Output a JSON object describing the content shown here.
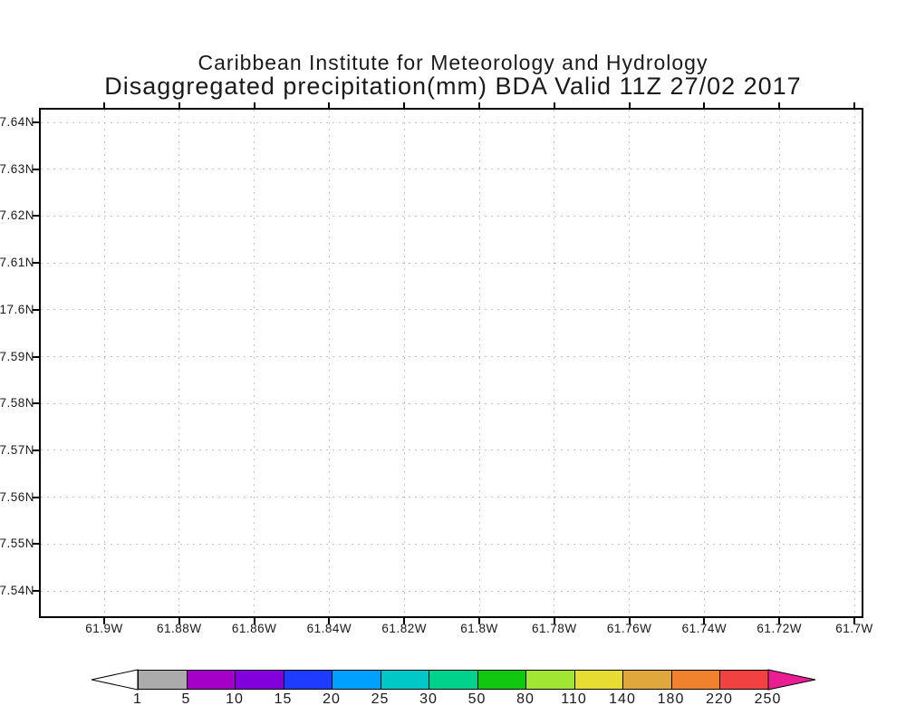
{
  "chart_data": {
    "type": "map",
    "title": "Caribbean Institute for Meteorology and Hydrology",
    "subtitle": "Disaggregated precipitation(mm) BDA Valid 11Z 27/02 2017",
    "x_axis": {
      "tick_labels": [
        "61.9W",
        "61.88W",
        "61.86W",
        "61.84W",
        "61.82W",
        "61.8W",
        "61.78W",
        "61.76W",
        "61.74W",
        "61.72W",
        "61.7W"
      ]
    },
    "y_axis": {
      "tick_labels": [
        "7.64N",
        "7.63N",
        "7.62N",
        "7.61N",
        "17.6N",
        "7.59N",
        "7.58N",
        "7.57N",
        "7.56N",
        "7.55N",
        "7.54N"
      ]
    },
    "grid": "dotted",
    "values": [],
    "note": "empty field - no precipitation shading drawn inside map box",
    "colorbar": {
      "levels": [
        "1",
        "5",
        "10",
        "15",
        "20",
        "25",
        "30",
        "50",
        "80",
        "110",
        "140",
        "180",
        "220",
        "250"
      ],
      "segment_colors": [
        "#ababab",
        "#a400c8",
        "#8200dc",
        "#1e3cff",
        "#00a0ff",
        "#00c8c8",
        "#00d28c",
        "#0fc80f",
        "#a0e632",
        "#e6dc32",
        "#e0a83c",
        "#f0822d",
        "#f24141"
      ],
      "underflow_arrow_color": "#ffffff",
      "overflow_arrow_color": "#ea1d92",
      "outline_color": "#000000"
    }
  }
}
